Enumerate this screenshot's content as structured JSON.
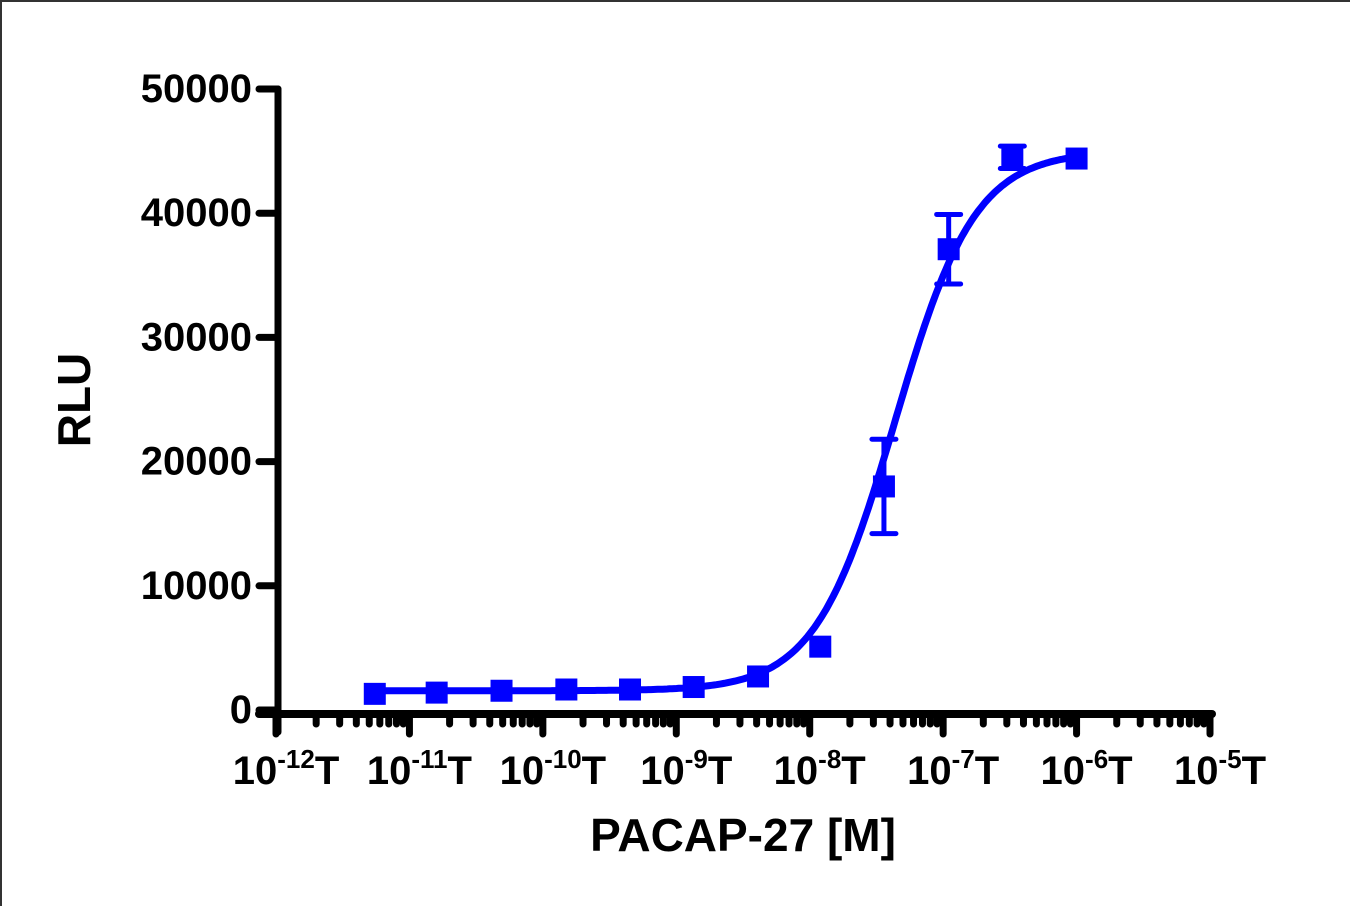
{
  "chart_data": {
    "type": "scatter",
    "fit": "sigmoidal dose-response (4PL) curve",
    "title": "",
    "xlabel": "PACAP-27 [M]",
    "ylabel": "RLU",
    "xscale": "log",
    "xlim": [
      1e-12,
      1e-05
    ],
    "ylim": [
      0,
      50000
    ],
    "grid": false,
    "legend": null,
    "y_ticks": [
      0,
      10000,
      20000,
      30000,
      40000,
      50000
    ],
    "y_tick_labels": [
      "0",
      "10000",
      "20000",
      "30000",
      "40000",
      "50000"
    ],
    "x_ticks": [
      -12,
      -11,
      -10,
      -9,
      -8,
      -7,
      -6,
      -5
    ],
    "x_tick_labels": [
      {
        "base": "10",
        "exp": "-12",
        "suffix": "T"
      },
      {
        "base": "10",
        "exp": "-11",
        "suffix": "T"
      },
      {
        "base": "10",
        "exp": "-10",
        "suffix": "T"
      },
      {
        "base": "10",
        "exp": "-9",
        "suffix": "T"
      },
      {
        "base": "10",
        "exp": "-8",
        "suffix": "T"
      },
      {
        "base": "10",
        "exp": "-7",
        "suffix": "T"
      },
      {
        "base": "10",
        "exp": "-6",
        "suffix": "T"
      },
      {
        "base": "10",
        "exp": "-5",
        "suffix": "T"
      }
    ],
    "series": [
      {
        "name": "PACAP-27",
        "color": "#0000ff",
        "marker": "square",
        "x": [
          5.5e-12,
          1.6e-11,
          4.9e-11,
          1.5e-10,
          4.5e-10,
          1.35e-09,
          4.1e-09,
          1.2e-08,
          3.6e-08,
          1.1e-07,
          3.3e-07,
          1e-06
        ],
        "y": [
          1300,
          1400,
          1550,
          1650,
          1650,
          1850,
          2700,
          5100,
          18000,
          37100,
          44500,
          44400
        ],
        "error": [
          0,
          0,
          0,
          0,
          0,
          0,
          0,
          0,
          3800,
          2800,
          900,
          0
        ]
      }
    ],
    "fit_params": {
      "bottom": 1550,
      "top": 45000,
      "log_ec50": -7.36,
      "hill": 1.45
    }
  }
}
